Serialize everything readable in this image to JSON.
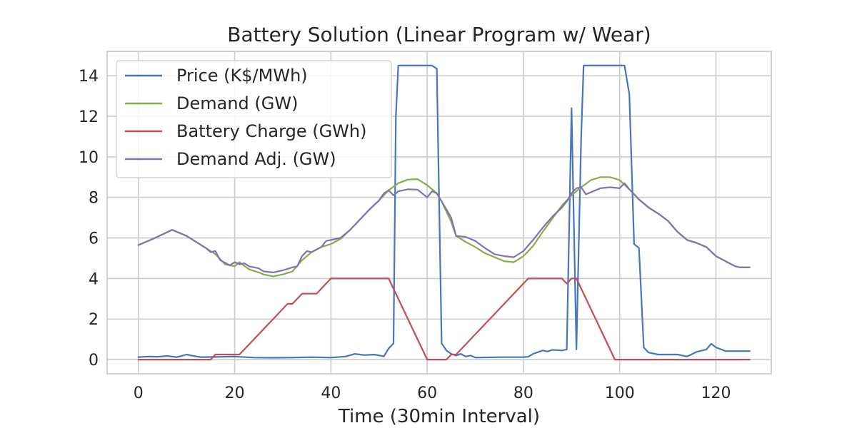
{
  "chart_data": {
    "type": "line",
    "title": "Battery Solution (Linear Program w/ Wear)",
    "xlabel": "Time (30min Interval)",
    "ylabel": "",
    "xlim": [
      -6.5,
      131.5
    ],
    "ylim": [
      -0.7,
      15.2
    ],
    "xticks": [
      0,
      20,
      40,
      60,
      80,
      100,
      120
    ],
    "yticks": [
      0,
      2,
      4,
      6,
      8,
      10,
      12,
      14
    ],
    "grid": true,
    "legend_position": "upper-left",
    "series": [
      {
        "name": "Price (K$/MWh)",
        "color": "#4477bb",
        "points": [
          [
            0,
            0.12
          ],
          [
            2,
            0.15
          ],
          [
            4,
            0.14
          ],
          [
            6,
            0.18
          ],
          [
            8,
            0.12
          ],
          [
            10,
            0.25
          ],
          [
            11,
            0.2
          ],
          [
            13,
            0.12
          ],
          [
            16,
            0.13
          ],
          [
            20,
            0.15
          ],
          [
            24,
            0.1
          ],
          [
            28,
            0.09
          ],
          [
            32,
            0.1
          ],
          [
            36,
            0.12
          ],
          [
            40,
            0.1
          ],
          [
            43,
            0.15
          ],
          [
            45,
            0.28
          ],
          [
            47,
            0.22
          ],
          [
            49,
            0.25
          ],
          [
            51,
            0.16
          ],
          [
            52,
            0.55
          ],
          [
            53,
            0.8
          ],
          [
            53.5,
            12.0
          ],
          [
            54,
            14.5
          ],
          [
            55,
            14.5
          ],
          [
            57,
            14.5
          ],
          [
            60,
            14.5
          ],
          [
            61,
            14.5
          ],
          [
            62,
            14.35
          ],
          [
            63,
            0.8
          ],
          [
            64,
            0.45
          ],
          [
            65,
            0.28
          ],
          [
            66,
            0.2
          ],
          [
            67,
            0.28
          ],
          [
            68,
            0.15
          ],
          [
            69,
            0.2
          ],
          [
            70,
            0.1
          ],
          [
            75,
            0.12
          ],
          [
            80,
            0.12
          ],
          [
            81,
            0.14
          ],
          [
            82,
            0.28
          ],
          [
            84,
            0.45
          ],
          [
            85,
            0.4
          ],
          [
            86,
            0.48
          ],
          [
            88,
            0.45
          ],
          [
            89,
            0.5
          ],
          [
            90,
            12.4
          ],
          [
            91,
            0.5
          ],
          [
            92,
            11.0
          ],
          [
            92.5,
            14.5
          ],
          [
            95,
            14.5
          ],
          [
            100,
            14.5
          ],
          [
            101,
            14.5
          ],
          [
            102,
            13.1
          ],
          [
            103,
            5.7
          ],
          [
            104,
            5.5
          ],
          [
            105,
            0.6
          ],
          [
            106,
            0.35
          ],
          [
            108,
            0.25
          ],
          [
            112,
            0.25
          ],
          [
            114,
            0.15
          ],
          [
            116,
            0.38
          ],
          [
            118,
            0.5
          ],
          [
            119,
            0.78
          ],
          [
            120,
            0.6
          ],
          [
            122,
            0.42
          ],
          [
            125,
            0.42
          ],
          [
            127,
            0.42
          ]
        ]
      },
      {
        "name": "Demand (GW)",
        "color": "#8aab45",
        "points": [
          [
            0,
            5.65
          ],
          [
            3,
            5.95
          ],
          [
            7,
            6.4
          ],
          [
            10,
            6.1
          ],
          [
            12,
            5.8
          ],
          [
            14,
            5.5
          ],
          [
            16,
            5.2
          ],
          [
            18,
            4.7
          ],
          [
            20,
            4.6
          ],
          [
            21,
            4.8
          ],
          [
            23,
            4.45
          ],
          [
            25,
            4.3
          ],
          [
            26,
            4.2
          ],
          [
            28,
            4.1
          ],
          [
            30,
            4.2
          ],
          [
            32,
            4.35
          ],
          [
            34,
            4.9
          ],
          [
            36,
            5.3
          ],
          [
            38,
            5.55
          ],
          [
            40,
            5.7
          ],
          [
            42,
            5.95
          ],
          [
            44,
            6.4
          ],
          [
            46,
            6.9
          ],
          [
            48,
            7.4
          ],
          [
            50,
            7.85
          ],
          [
            52,
            8.35
          ],
          [
            54,
            8.7
          ],
          [
            56,
            8.88
          ],
          [
            58,
            8.9
          ],
          [
            60,
            8.6
          ],
          [
            62,
            8.2
          ],
          [
            63,
            7.8
          ],
          [
            65,
            6.8
          ],
          [
            66,
            6.1
          ],
          [
            68,
            5.8
          ],
          [
            70,
            5.55
          ],
          [
            72,
            5.25
          ],
          [
            74,
            5.05
          ],
          [
            76,
            4.85
          ],
          [
            78,
            4.8
          ],
          [
            80,
            5.1
          ],
          [
            82,
            5.6
          ],
          [
            84,
            6.3
          ],
          [
            86,
            6.95
          ],
          [
            88,
            7.6
          ],
          [
            90,
            8.1
          ],
          [
            92,
            8.5
          ],
          [
            94,
            8.85
          ],
          [
            96,
            9.0
          ],
          [
            98,
            9.0
          ],
          [
            100,
            8.85
          ],
          [
            102,
            8.4
          ],
          [
            104,
            7.9
          ],
          [
            106,
            7.5
          ],
          [
            108,
            7.2
          ],
          [
            110,
            6.85
          ],
          [
            112,
            6.3
          ],
          [
            114,
            5.9
          ],
          [
            116,
            5.75
          ],
          [
            118,
            5.55
          ],
          [
            120,
            5.1
          ],
          [
            122,
            4.85
          ],
          [
            124,
            4.6
          ],
          [
            125,
            4.55
          ],
          [
            127,
            4.55
          ]
        ]
      },
      {
        "name": "Battery Charge (GWh)",
        "color": "#c44e52",
        "points": [
          [
            0,
            0
          ],
          [
            15,
            0
          ],
          [
            16,
            0.25
          ],
          [
            21,
            0.25
          ],
          [
            31,
            2.75
          ],
          [
            32,
            2.75
          ],
          [
            34,
            3.25
          ],
          [
            37,
            3.25
          ],
          [
            40,
            4.0
          ],
          [
            52,
            4.0
          ],
          [
            60,
            0
          ],
          [
            64,
            0
          ],
          [
            65,
            0.25
          ],
          [
            66,
            0.25
          ],
          [
            81,
            4.0
          ],
          [
            88,
            4.0
          ],
          [
            89,
            3.75
          ],
          [
            90,
            4.0
          ],
          [
            91,
            4.0
          ],
          [
            99,
            0
          ],
          [
            127,
            0
          ]
        ]
      },
      {
        "name": "Demand Adj. (GW)",
        "color": "#8172b2",
        "points": [
          [
            0,
            5.65
          ],
          [
            3,
            5.95
          ],
          [
            7,
            6.4
          ],
          [
            10,
            6.1
          ],
          [
            12,
            5.8
          ],
          [
            14,
            5.5
          ],
          [
            15,
            5.3
          ],
          [
            16,
            5.35
          ],
          [
            17,
            4.9
          ],
          [
            19,
            4.65
          ],
          [
            20,
            4.8
          ],
          [
            21,
            4.7
          ],
          [
            22,
            4.75
          ],
          [
            23,
            4.6
          ],
          [
            25,
            4.5
          ],
          [
            26,
            4.35
          ],
          [
            28,
            4.3
          ],
          [
            30,
            4.4
          ],
          [
            32,
            4.55
          ],
          [
            33,
            4.6
          ],
          [
            34,
            5.1
          ],
          [
            35,
            5.35
          ],
          [
            36,
            5.3
          ],
          [
            38,
            5.55
          ],
          [
            39,
            5.85
          ],
          [
            41,
            5.95
          ],
          [
            42,
            6.0
          ],
          [
            44,
            6.4
          ],
          [
            46,
            6.9
          ],
          [
            48,
            7.4
          ],
          [
            50,
            7.85
          ],
          [
            51,
            8.2
          ],
          [
            52,
            8.35
          ],
          [
            53,
            8.1
          ],
          [
            54,
            8.3
          ],
          [
            56,
            8.4
          ],
          [
            58,
            8.38
          ],
          [
            60,
            8.0
          ],
          [
            61,
            8.3
          ],
          [
            62,
            8.2
          ],
          [
            63,
            7.8
          ],
          [
            65,
            7.0
          ],
          [
            66,
            6.1
          ],
          [
            68,
            6.05
          ],
          [
            70,
            5.85
          ],
          [
            72,
            5.5
          ],
          [
            74,
            5.2
          ],
          [
            76,
            5.1
          ],
          [
            78,
            5.05
          ],
          [
            80,
            5.35
          ],
          [
            82,
            5.9
          ],
          [
            84,
            6.5
          ],
          [
            86,
            7.05
          ],
          [
            88,
            7.5
          ],
          [
            89,
            7.8
          ],
          [
            90,
            8.2
          ],
          [
            91,
            8.45
          ],
          [
            92,
            8.5
          ],
          [
            93,
            8.15
          ],
          [
            95,
            8.35
          ],
          [
            96,
            8.45
          ],
          [
            98,
            8.5
          ],
          [
            100,
            8.45
          ],
          [
            101,
            8.7
          ],
          [
            102,
            8.4
          ],
          [
            104,
            7.9
          ],
          [
            106,
            7.5
          ],
          [
            108,
            7.2
          ],
          [
            110,
            6.85
          ],
          [
            112,
            6.3
          ],
          [
            114,
            5.9
          ],
          [
            116,
            5.75
          ],
          [
            118,
            5.55
          ],
          [
            120,
            5.1
          ],
          [
            122,
            4.85
          ],
          [
            124,
            4.6
          ],
          [
            125,
            4.55
          ],
          [
            127,
            4.55
          ]
        ]
      }
    ]
  }
}
